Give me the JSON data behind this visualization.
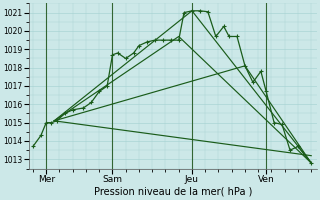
{
  "xlabel": "Pression niveau de la mer( hPa )",
  "bg_color": "#cce8e8",
  "grid_color": "#aad4d4",
  "line_color": "#1a5c1a",
  "vline_color": "#336633",
  "ylim": [
    1012.5,
    1021.5
  ],
  "yticks": [
    1013,
    1014,
    1015,
    1016,
    1017,
    1018,
    1019,
    1020,
    1021
  ],
  "xlim": [
    -0.15,
    10.7
  ],
  "xtick_labels": [
    "Mer",
    "Sam",
    "Jeu",
    "Ven"
  ],
  "xtick_positions": [
    0.5,
    3.0,
    6.0,
    8.8
  ],
  "vline_positions": [
    0.5,
    3.0,
    6.0,
    8.8
  ],
  "series0": [
    [
      0.0,
      1013.7
    ],
    [
      0.3,
      1014.3
    ],
    [
      0.5,
      1015.0
    ],
    [
      0.7,
      1015.0
    ],
    [
      0.9,
      1015.1
    ],
    [
      1.2,
      1015.5
    ],
    [
      1.5,
      1015.7
    ],
    [
      1.9,
      1015.8
    ],
    [
      2.2,
      1016.1
    ],
    [
      2.5,
      1016.7
    ],
    [
      2.8,
      1017.0
    ],
    [
      3.0,
      1018.7
    ],
    [
      3.2,
      1018.8
    ],
    [
      3.5,
      1018.5
    ],
    [
      3.8,
      1018.8
    ],
    [
      4.0,
      1019.2
    ],
    [
      4.3,
      1019.4
    ],
    [
      4.6,
      1019.5
    ],
    [
      4.9,
      1019.5
    ],
    [
      5.2,
      1019.5
    ],
    [
      5.5,
      1019.5
    ],
    [
      5.7,
      1021.0
    ],
    [
      6.0,
      1021.1
    ],
    [
      6.3,
      1021.1
    ],
    [
      6.6,
      1021.05
    ],
    [
      6.9,
      1019.7
    ],
    [
      7.2,
      1020.25
    ],
    [
      7.4,
      1019.7
    ],
    [
      7.7,
      1019.7
    ],
    [
      8.0,
      1018.1
    ],
    [
      8.3,
      1017.2
    ],
    [
      8.6,
      1017.8
    ],
    [
      8.8,
      1016.7
    ],
    [
      9.1,
      1015.0
    ],
    [
      9.4,
      1014.9
    ],
    [
      9.7,
      1013.5
    ],
    [
      10.0,
      1013.7
    ],
    [
      10.5,
      1012.8
    ]
  ],
  "series1": [
    [
      0.8,
      1015.1
    ],
    [
      6.0,
      1021.1
    ],
    [
      10.5,
      1012.8
    ]
  ],
  "series2": [
    [
      0.8,
      1015.1
    ],
    [
      5.5,
      1019.7
    ],
    [
      10.5,
      1012.8
    ]
  ],
  "series3": [
    [
      0.8,
      1015.1
    ],
    [
      8.0,
      1018.1
    ],
    [
      10.5,
      1012.8
    ]
  ],
  "series4": [
    [
      0.8,
      1015.1
    ],
    [
      10.5,
      1013.2
    ]
  ]
}
